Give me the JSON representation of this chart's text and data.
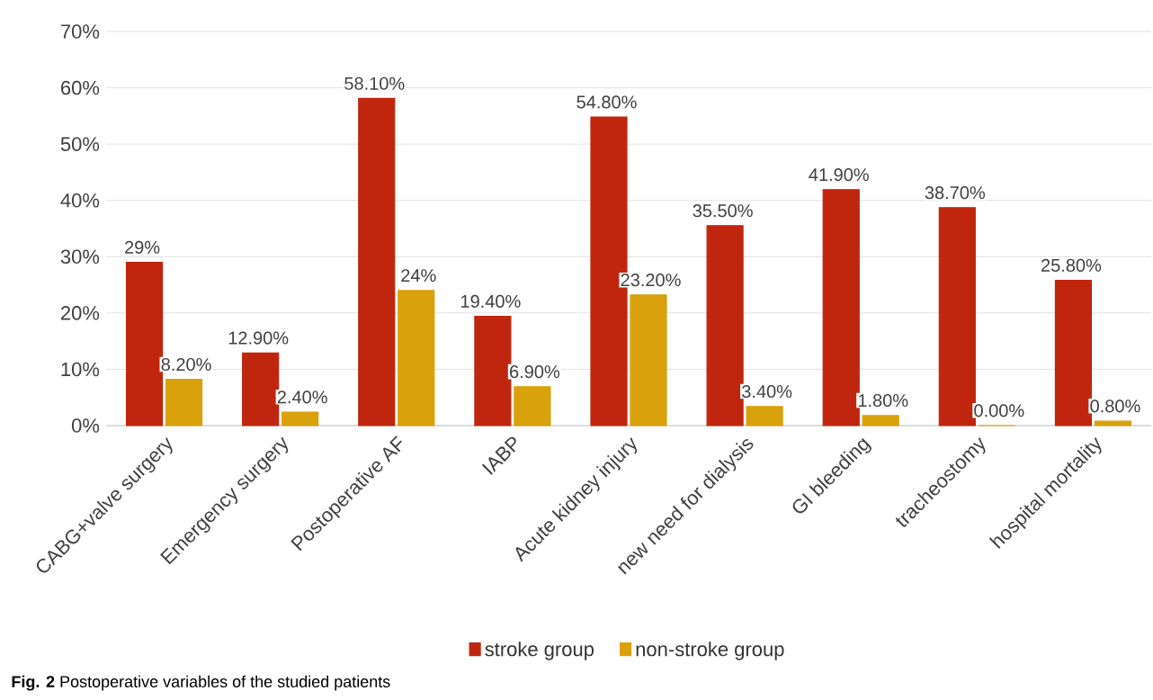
{
  "chart_data": {
    "type": "bar",
    "categories": [
      "CABG+valve surgery",
      "Emergency surgery",
      "Postoperative AF",
      "IABP",
      "Acute kidney injury",
      "new need for dialysis",
      "GI bleeding",
      "tracheostomy",
      "hospital mortality"
    ],
    "series": [
      {
        "name": "stroke group",
        "color": "#c0260e",
        "values": [
          29,
          12.9,
          58.1,
          19.4,
          54.8,
          35.5,
          41.9,
          38.7,
          25.8
        ],
        "value_labels": [
          "29%",
          "12.90%",
          "58.10%",
          "19.40%",
          "54.80%",
          "35.50%",
          "41.90%",
          "38.70%",
          "25.80%"
        ]
      },
      {
        "name": "non-stroke group",
        "color": "#d9a20c",
        "values": [
          8.2,
          2.4,
          24,
          6.9,
          23.2,
          3.4,
          1.8,
          0,
          0.8
        ],
        "value_labels": [
          "8.20%",
          "2.40%",
          "24%",
          "6.90%",
          "23.20%",
          "3.40%",
          "1.80%",
          "0.00%",
          "0.80%"
        ]
      }
    ],
    "ylim": [
      0,
      70
    ],
    "yticks": [
      {
        "value": 0,
        "label": "0%"
      },
      {
        "value": 10,
        "label": "10%"
      },
      {
        "value": 20,
        "label": "20%"
      },
      {
        "value": 30,
        "label": "30%"
      },
      {
        "value": 40,
        "label": "40%"
      },
      {
        "value": 50,
        "label": "50%"
      },
      {
        "value": 60,
        "label": "60%"
      },
      {
        "value": 70,
        "label": "70%"
      }
    ],
    "grid": "y",
    "legend": "bottom",
    "annotations": [
      "**Fig. 2** Postoperative variables of the studied patients"
    ]
  }
}
